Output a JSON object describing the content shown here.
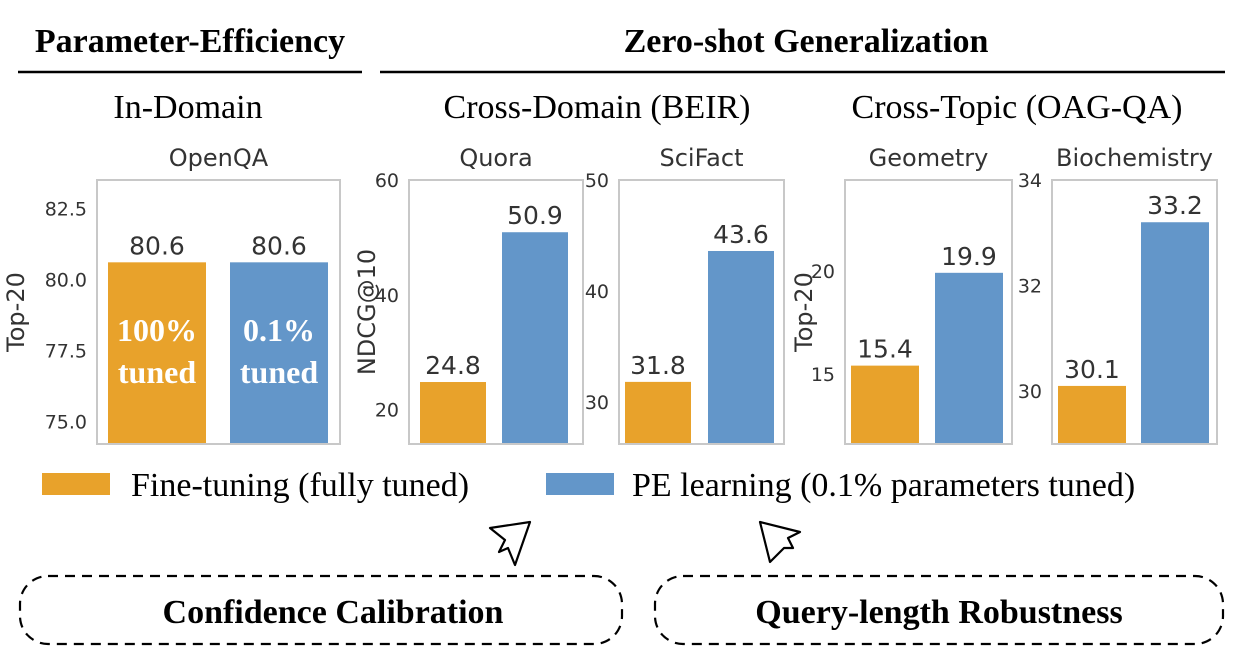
{
  "headers": {
    "parameter_efficiency": "Parameter-Efficiency",
    "zero_shot": "Zero-shot Generalization",
    "in_domain": "In-Domain",
    "cross_domain": "Cross-Domain (BEIR)",
    "cross_topic": "Cross-Topic (OAG-QA)"
  },
  "colors": {
    "fine_tuning": "#E8A22B",
    "pe_learning": "#6396C9",
    "axes": "#c8c8c8",
    "text": "#333333"
  },
  "legend": [
    {
      "label": "Fine-tuning (fully tuned)",
      "color": "#E8A22B"
    },
    {
      "label": "PE learning (0.1% parameters tuned)",
      "color": "#6396C9"
    }
  ],
  "callouts": {
    "left": "Confidence Calibration",
    "right": "Query-length Robustness"
  },
  "chart_data": [
    {
      "type": "bar",
      "title": "OpenQA",
      "ylabel": "Top-20",
      "ylim": [
        74.2,
        83.5
      ],
      "yticks": [
        75.0,
        77.5,
        80.0,
        82.5
      ],
      "values": [
        80.6,
        80.6
      ],
      "bar_texts": [
        "100% tuned",
        "0.1% tuned"
      ]
    },
    {
      "type": "bar",
      "title": "Quora",
      "ylabel": "NDCG@10",
      "ylim": [
        14,
        60
      ],
      "yticks": [
        20,
        40,
        60
      ],
      "values": [
        24.8,
        50.9
      ]
    },
    {
      "type": "bar",
      "title": "SciFact",
      "ylabel": "",
      "ylim": [
        26.2,
        50
      ],
      "yticks": [
        30,
        40,
        50
      ],
      "values": [
        31.8,
        43.6
      ]
    },
    {
      "type": "bar",
      "title": "Geometry",
      "ylabel": "Top-20",
      "ylim": [
        11.6,
        24.4
      ],
      "yticks": [
        15,
        20
      ],
      "values": [
        15.4,
        19.9
      ]
    },
    {
      "type": "bar",
      "title": "Biochemistry",
      "ylabel": "",
      "ylim": [
        29.0,
        34.0
      ],
      "yticks": [
        30,
        32,
        34
      ],
      "values": [
        30.1,
        33.2
      ]
    }
  ]
}
